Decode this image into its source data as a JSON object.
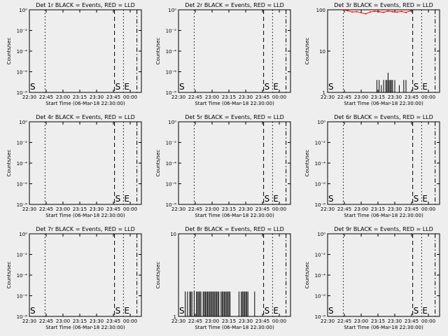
{
  "figure": {
    "background": "#eeeeee",
    "series_colors": {
      "events": "#000000",
      "lld": "#ff0000"
    },
    "marker_labels": {
      "start": "S",
      "end": "E"
    },
    "x_tick_labels": [
      "22:30",
      "22:45",
      "23:00",
      "23:15",
      "23:30",
      "23:45",
      "00:00"
    ]
  },
  "chart_data": [
    {
      "type": "line",
      "title": "Det 1r BLACK = Events, RED = LLD",
      "xlabel": "Start Time (06-Mar-18 22:30:00)",
      "ylabel": "Counts/sec",
      "y_scale": "log",
      "ylim": [
        1e-08,
        1
      ],
      "y_tick_labels": [
        "10⁻⁸",
        "10⁻⁶",
        "10⁻⁴",
        "10⁻²",
        "10⁰"
      ],
      "x_unit": "minutes after 22:30",
      "xlim": [
        0,
        100
      ],
      "vlines": [
        {
          "x": 14,
          "style": "dotted"
        },
        {
          "x": 76,
          "style": "dashed"
        },
        {
          "x": 84,
          "style": "dotted"
        },
        {
          "x": 96,
          "style": "dashdot"
        }
      ],
      "markers": [
        {
          "label": "S",
          "x": 0
        },
        {
          "label": "S",
          "x": 76
        },
        {
          "label": "E",
          "x": 84
        }
      ],
      "series": []
    },
    {
      "type": "line",
      "title": "Det 2r BLACK = Events, RED = LLD",
      "xlabel": "Start Time (06-Mar-18 22:30:00)",
      "ylabel": "Counts/sec",
      "y_scale": "log",
      "ylim": [
        1e-08,
        1
      ],
      "y_tick_labels": [
        "10⁻⁸",
        "10⁻⁶",
        "10⁻⁴",
        "10⁻²",
        "10⁰"
      ],
      "x_unit": "minutes after 22:30",
      "xlim": [
        0,
        100
      ],
      "vlines": [
        {
          "x": 14,
          "style": "dotted"
        },
        {
          "x": 76,
          "style": "dashed"
        },
        {
          "x": 84,
          "style": "dotted"
        },
        {
          "x": 96,
          "style": "dashdot"
        }
      ],
      "markers": [
        {
          "label": "S",
          "x": 0
        },
        {
          "label": "S",
          "x": 76
        },
        {
          "label": "E",
          "x": 84
        }
      ],
      "series": []
    },
    {
      "type": "line",
      "title": "Det 3r BLACK = Events, RED = LLD",
      "xlabel": "Start Time (06-Mar-18 22:30:00)",
      "ylabel": "Counts/sec",
      "y_scale": "log",
      "ylim": [
        1,
        100
      ],
      "y_tick_labels": [
        "1",
        "10",
        "100"
      ],
      "x_unit": "minutes after 22:30",
      "xlim": [
        0,
        100
      ],
      "vlines": [
        {
          "x": 14,
          "style": "dotted"
        },
        {
          "x": 76,
          "style": "dashed"
        },
        {
          "x": 84,
          "style": "dotted"
        },
        {
          "x": 96,
          "style": "dashdot"
        }
      ],
      "markers": [
        {
          "label": "S",
          "x": 0
        },
        {
          "label": "S",
          "x": 76
        },
        {
          "label": "E",
          "x": 84
        }
      ],
      "series": [
        {
          "role": "lld",
          "x": [
            14,
            18,
            22,
            26,
            30,
            34,
            38,
            42,
            46,
            50,
            54,
            58,
            62,
            66,
            70,
            74
          ],
          "values": [
            100,
            95,
            88,
            90,
            85,
            80,
            88,
            92,
            90,
            87,
            93,
            90,
            88,
            91,
            86,
            95
          ]
        },
        {
          "role": "events",
          "x": [
            44,
            46,
            48,
            50,
            52,
            53,
            54,
            55,
            56,
            57,
            58,
            60,
            64,
            68,
            70
          ],
          "values": [
            2,
            2,
            1.5,
            2,
            2,
            2,
            3,
            2,
            2,
            2,
            2,
            2,
            1.5,
            2,
            2
          ]
        }
      ]
    },
    {
      "type": "line",
      "title": "Det 4r BLACK = Events, RED = LLD",
      "xlabel": "Start Time (06-Mar-18 22:30:00)",
      "ylabel": "Counts/sec",
      "y_scale": "log",
      "ylim": [
        1e-08,
        1
      ],
      "y_tick_labels": [
        "10⁻⁸",
        "10⁻⁶",
        "10⁻⁴",
        "10⁻²",
        "10⁰"
      ],
      "x_unit": "minutes after 22:30",
      "xlim": [
        0,
        100
      ],
      "vlines": [
        {
          "x": 14,
          "style": "dotted"
        },
        {
          "x": 76,
          "style": "dashed"
        },
        {
          "x": 84,
          "style": "dotted"
        },
        {
          "x": 96,
          "style": "dashdot"
        }
      ],
      "markers": [
        {
          "label": "S",
          "x": 76
        },
        {
          "label": "E",
          "x": 84
        }
      ],
      "series": []
    },
    {
      "type": "line",
      "title": "Det 5r BLACK = Events, RED = LLD",
      "xlabel": "Start Time (06-Mar-18 22:30:00)",
      "ylabel": "Counts/sec",
      "y_scale": "log",
      "ylim": [
        1e-08,
        1
      ],
      "y_tick_labels": [
        "10⁻⁸",
        "10⁻⁶",
        "10⁻⁴",
        "10⁻²",
        "10⁰"
      ],
      "x_unit": "minutes after 22:30",
      "xlim": [
        0,
        100
      ],
      "vlines": [
        {
          "x": 14,
          "style": "dotted"
        },
        {
          "x": 76,
          "style": "dashed"
        },
        {
          "x": 84,
          "style": "dotted"
        },
        {
          "x": 96,
          "style": "dashdot"
        }
      ],
      "markers": [
        {
          "label": "S",
          "x": 76
        },
        {
          "label": "E",
          "x": 84
        }
      ],
      "series": []
    },
    {
      "type": "line",
      "title": "Det 6r BLACK = Events, RED = LLD",
      "xlabel": "Start Time (06-Mar-18 22:30:00)",
      "ylabel": "Counts/sec",
      "y_scale": "log",
      "ylim": [
        1e-08,
        1
      ],
      "y_tick_labels": [
        "10⁻⁸",
        "10⁻⁶",
        "10⁻⁴",
        "10⁻²",
        "10⁰"
      ],
      "x_unit": "minutes after 22:30",
      "xlim": [
        0,
        100
      ],
      "vlines": [
        {
          "x": 14,
          "style": "dotted"
        },
        {
          "x": 76,
          "style": "dashed"
        },
        {
          "x": 84,
          "style": "dotted"
        },
        {
          "x": 96,
          "style": "dashdot"
        }
      ],
      "markers": [
        {
          "label": "S",
          "x": 0
        },
        {
          "label": "S",
          "x": 76
        },
        {
          "label": "E",
          "x": 84
        }
      ],
      "series": []
    },
    {
      "type": "line",
      "title": "Det 7r BLACK = Events, RED = LLD",
      "xlabel": "Start Time (06-Mar-18 22:30:00)",
      "ylabel": "Counts/sec",
      "y_scale": "log",
      "ylim": [
        1e-08,
        1
      ],
      "y_tick_labels": [
        "10⁻⁸",
        "10⁻⁶",
        "10⁻⁴",
        "10⁻²",
        "10⁰"
      ],
      "x_unit": "minutes after 22:30",
      "xlim": [
        0,
        100
      ],
      "vlines": [
        {
          "x": 14,
          "style": "dotted"
        },
        {
          "x": 76,
          "style": "dashed"
        },
        {
          "x": 84,
          "style": "dotted"
        },
        {
          "x": 96,
          "style": "dashdot"
        }
      ],
      "markers": [
        {
          "label": "S",
          "x": 0
        },
        {
          "label": "S",
          "x": 76
        },
        {
          "label": "E",
          "x": 84
        }
      ],
      "series": []
    },
    {
      "type": "line",
      "title": "Det 8r BLACK = Events, RED = LLD",
      "xlabel": "Start Time (06-Mar-18 22:30:00)",
      "ylabel": "Counts/sec",
      "y_scale": "log",
      "ylim": [
        1,
        10
      ],
      "y_tick_labels": [
        "1",
        "10"
      ],
      "x_unit": "minutes after 22:30",
      "xlim": [
        0,
        100
      ],
      "vlines": [
        {
          "x": 14,
          "style": "dotted"
        },
        {
          "x": 76,
          "style": "dashed"
        },
        {
          "x": 84,
          "style": "dotted"
        },
        {
          "x": 96,
          "style": "dashdot"
        }
      ],
      "markers": [
        {
          "label": "S",
          "x": 0
        },
        {
          "label": "S",
          "x": 76
        },
        {
          "label": "E",
          "x": 84
        }
      ],
      "series": [
        {
          "role": "events",
          "x": [
            6,
            8,
            10,
            11,
            12,
            14,
            16,
            17,
            18,
            19,
            20,
            22,
            23,
            24,
            25,
            26,
            27,
            28,
            29,
            30,
            31,
            32,
            33,
            34,
            35,
            36,
            38,
            39,
            40,
            41,
            42,
            43,
            44,
            45,
            46,
            54,
            56,
            57,
            58,
            59,
            60,
            61,
            62,
            68
          ],
          "values": [
            2,
            2,
            2,
            2,
            2,
            2,
            2,
            2,
            2,
            2,
            2,
            2,
            2,
            2,
            2,
            2,
            2,
            2,
            2,
            2,
            2,
            2,
            2,
            2,
            2,
            2,
            2,
            2,
            2,
            2,
            2,
            2,
            2,
            2,
            2,
            2,
            2,
            2,
            2,
            2,
            2,
            2,
            2,
            2
          ]
        }
      ]
    },
    {
      "type": "line",
      "title": "Det 9r BLACK = Events, RED = LLD",
      "xlabel": "Start Time (06-Mar-18 22:30:00)",
      "ylabel": "Counts/sec",
      "y_scale": "log",
      "ylim": [
        1e-08,
        1
      ],
      "y_tick_labels": [
        "10⁻⁸",
        "10⁻⁶",
        "10⁻⁴",
        "10⁻²",
        "10⁰"
      ],
      "x_unit": "minutes after 22:30",
      "xlim": [
        0,
        100
      ],
      "vlines": [
        {
          "x": 14,
          "style": "dotted"
        },
        {
          "x": 76,
          "style": "dashed"
        },
        {
          "x": 84,
          "style": "dotted"
        },
        {
          "x": 96,
          "style": "dashdot"
        }
      ],
      "markers": [
        {
          "label": "S",
          "x": 0
        },
        {
          "label": "S",
          "x": 76
        },
        {
          "label": "E",
          "x": 84
        }
      ],
      "series": []
    }
  ]
}
